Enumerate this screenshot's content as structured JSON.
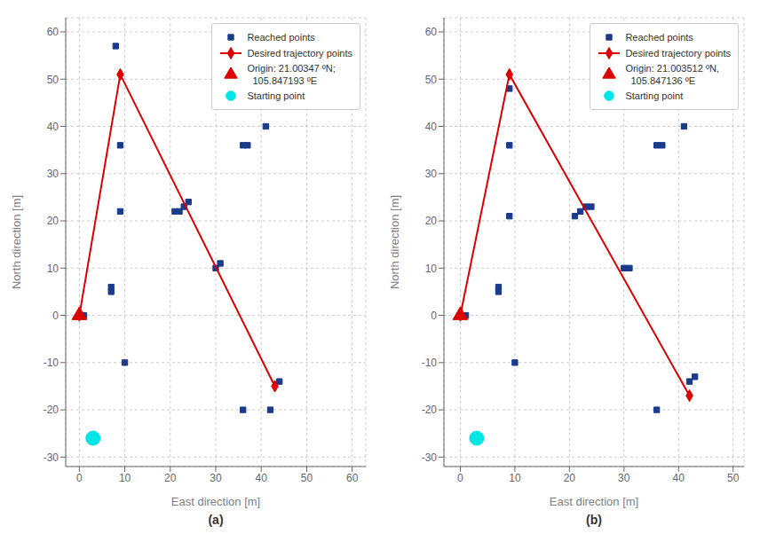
{
  "chart_data": [
    {
      "type": "scatter",
      "title": "(a)",
      "x_label": "East direction [m]",
      "y_label": "North direction [m]",
      "xlim": [
        -3,
        63
      ],
      "ylim": [
        -32,
        63
      ],
      "xticks": [
        0,
        10,
        20,
        30,
        40,
        50,
        60
      ],
      "yticks": [
        -30,
        -20,
        -10,
        0,
        10,
        20,
        30,
        40,
        50,
        60
      ],
      "grid": true,
      "legend": "upper right",
      "series": [
        {
          "name": "Reached points",
          "type": "scatter",
          "marker": "square",
          "color": "#1a3a8a",
          "x": [
            1,
            7,
            7,
            8,
            9,
            9,
            10,
            21,
            22,
            23,
            24,
            30,
            31,
            36,
            36,
            37,
            41,
            42,
            44
          ],
          "values": [
            0,
            6,
            5,
            57,
            36,
            22,
            -10,
            22,
            22,
            23,
            24,
            10,
            11,
            36,
            -20,
            36,
            40,
            -20,
            -14
          ]
        },
        {
          "name": "Desired trajectory points",
          "type": "line",
          "marker": "diamond",
          "line_style": "solid",
          "color": "#dd0000",
          "x": [
            0,
            9,
            43
          ],
          "values": [
            0,
            51,
            -15
          ]
        },
        {
          "name": "Origin: 21.00347 ºN;\n  105.847193 ºE",
          "type": "scatter",
          "marker": "triangle",
          "color": "#dd0000",
          "x": [
            0
          ],
          "values": [
            0
          ]
        },
        {
          "name": "Starting point",
          "type": "scatter",
          "marker": "circle",
          "color": "#00e5e5",
          "x": [
            3
          ],
          "values": [
            -26
          ]
        }
      ]
    },
    {
      "type": "scatter",
      "title": "(b)",
      "x_label": "East direction [m]",
      "y_label": "North direction [m]",
      "xlim": [
        -3,
        52
      ],
      "ylim": [
        -32,
        63
      ],
      "xticks": [
        0,
        10,
        20,
        30,
        40,
        50
      ],
      "yticks": [
        -30,
        -20,
        -10,
        0,
        10,
        20,
        30,
        40,
        50,
        60
      ],
      "grid": true,
      "legend": "upper right",
      "series": [
        {
          "name": "Reached points",
          "type": "scatter",
          "marker": "square",
          "color": "#1a3a8a",
          "x": [
            1,
            7,
            7,
            9,
            9,
            9,
            10,
            21,
            22,
            23,
            24,
            30,
            31,
            36,
            36,
            37,
            41,
            42,
            43
          ],
          "values": [
            0,
            6,
            5,
            48,
            36,
            21,
            -10,
            21,
            22,
            23,
            23,
            10,
            10,
            36,
            -20,
            36,
            40,
            -14,
            -13
          ]
        },
        {
          "name": "Desired trajectory points",
          "type": "line",
          "marker": "diamond",
          "line_style": "solid",
          "color": "#dd0000",
          "x": [
            0,
            9,
            42
          ],
          "values": [
            0,
            51,
            -17
          ]
        },
        {
          "name": "Origin: 21.003512 ºN,\n  105.847136 ºE",
          "type": "scatter",
          "marker": "triangle",
          "color": "#dd0000",
          "x": [
            0
          ],
          "values": [
            0
          ]
        },
        {
          "name": "Starting point",
          "type": "scatter",
          "marker": "circle",
          "color": "#00e5e5",
          "x": [
            3
          ],
          "values": [
            -26
          ]
        }
      ]
    }
  ]
}
